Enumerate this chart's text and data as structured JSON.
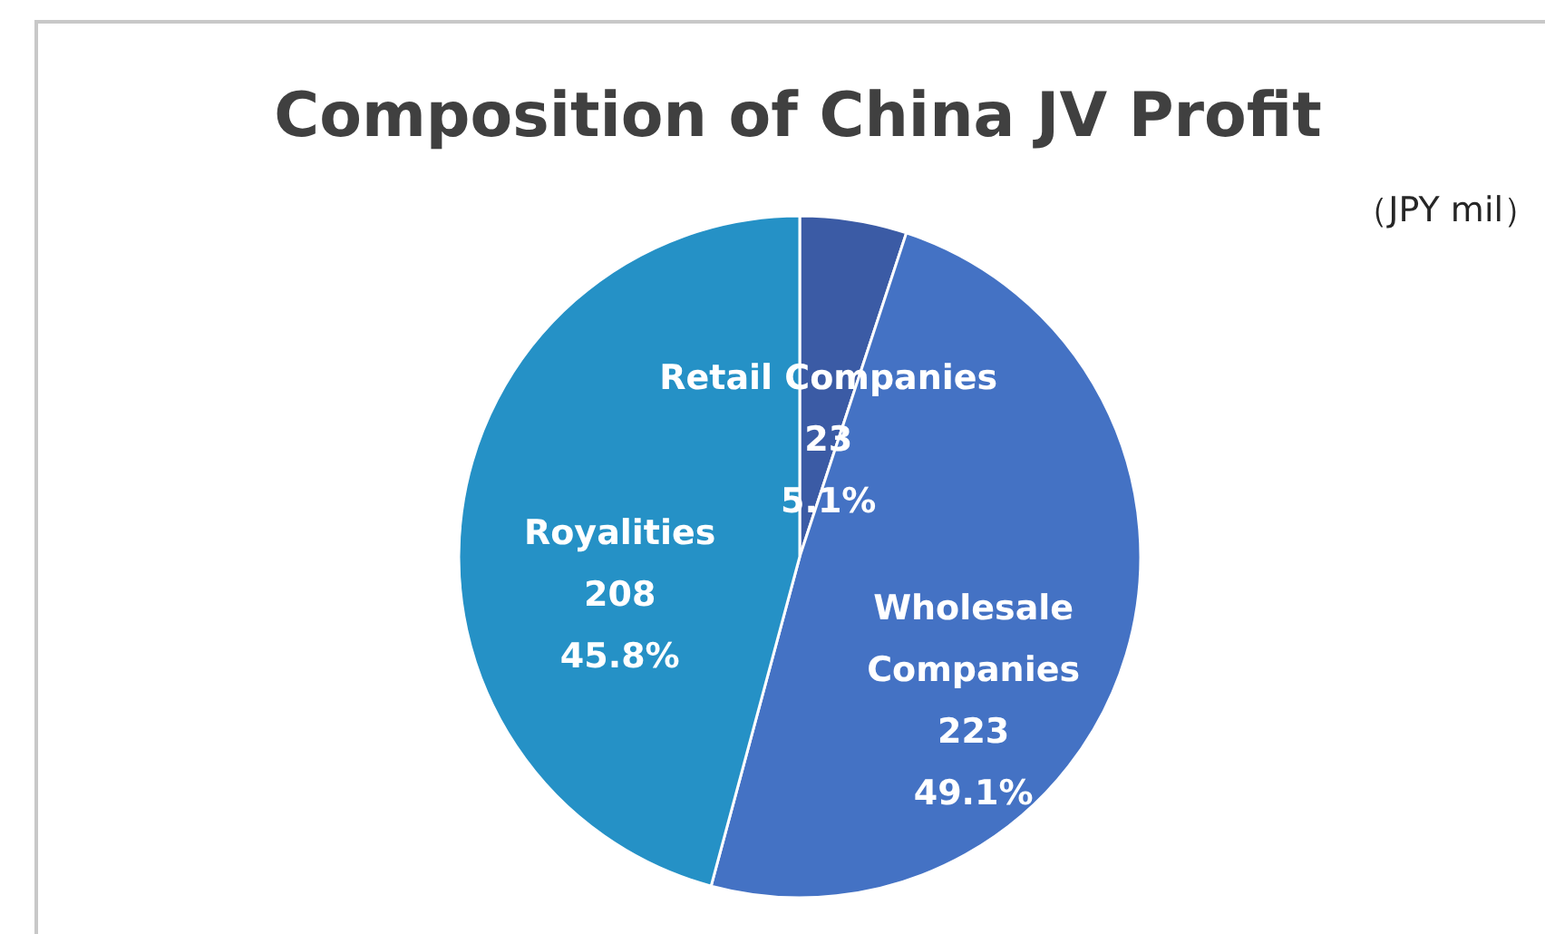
{
  "chart_data": {
    "type": "pie",
    "title": "Composition of China JV Profit",
    "annotations": [
      "（JPY mil）"
    ],
    "categories": [
      "Retail Companies",
      "Wholesale Companies",
      "Royalities"
    ],
    "values": [
      23,
      223,
      208
    ],
    "colors": [
      "#3b5ba5",
      "#4472c4",
      "#2591c6"
    ],
    "value_labels": [
      "23\n5.1%",
      "223\n49.1%",
      "208\n45.8%"
    ]
  }
}
